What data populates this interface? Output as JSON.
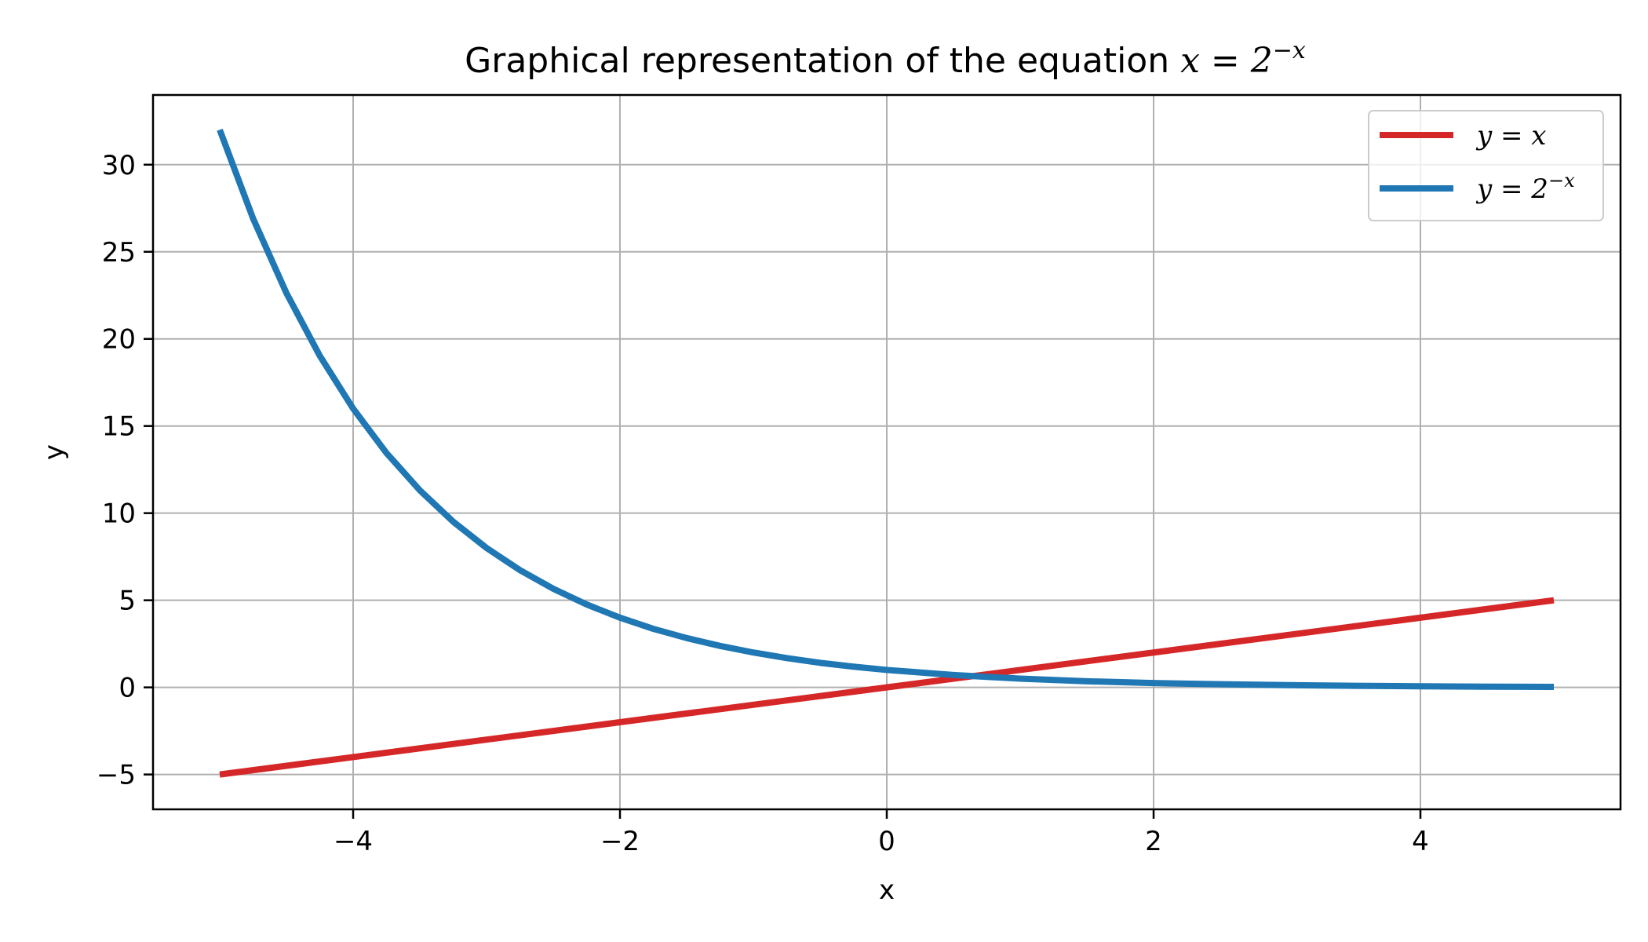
{
  "chart_data": {
    "type": "line",
    "title": {
      "prefix": "Graphical representation of the equation ",
      "math_base": "x = 2",
      "math_sup": "−x"
    },
    "xlabel": "x",
    "ylabel": "y",
    "xlim": [
      -5.5,
      5.5
    ],
    "ylim": [
      -7.0,
      34.0
    ],
    "xticks": [
      -4,
      -2,
      0,
      2,
      4
    ],
    "xtick_labels": [
      "−4",
      "−2",
      "0",
      "2",
      "4"
    ],
    "yticks": [
      -5,
      0,
      5,
      10,
      15,
      20,
      25,
      30
    ],
    "ytick_labels": [
      "−5",
      "0",
      "5",
      "10",
      "15",
      "20",
      "25",
      "30"
    ],
    "grid": true,
    "legend_position": "top-right",
    "series": [
      {
        "name": "y = x",
        "legend_base": "y = x",
        "legend_sup": "",
        "color": "#d62728",
        "x": [
          -5,
          -4,
          -3,
          -2,
          -1,
          0,
          1,
          2,
          3,
          4,
          5
        ],
        "y": [
          -5,
          -4,
          -3,
          -2,
          -1,
          0,
          1,
          2,
          3,
          4,
          5
        ]
      },
      {
        "name": "y = 2^(−x)",
        "legend_base": "y = 2",
        "legend_sup": "−x",
        "color": "#1f77b4",
        "x": [
          -5,
          -4.75,
          -4.5,
          -4.25,
          -4,
          -3.75,
          -3.5,
          -3.25,
          -3,
          -2.75,
          -2.5,
          -2.25,
          -2,
          -1.75,
          -1.5,
          -1.25,
          -1,
          -0.75,
          -0.5,
          -0.25,
          0,
          0.5,
          1,
          1.5,
          2,
          2.5,
          3,
          3.5,
          4,
          4.5,
          5
        ],
        "y": [
          32.0,
          26.91,
          22.63,
          19.03,
          16.0,
          13.45,
          11.31,
          9.51,
          8.0,
          6.73,
          5.66,
          4.76,
          4.0,
          3.36,
          2.83,
          2.38,
          2.0,
          1.68,
          1.41,
          1.19,
          1.0,
          0.71,
          0.5,
          0.35,
          0.25,
          0.18,
          0.13,
          0.09,
          0.06,
          0.04,
          0.03
        ]
      }
    ]
  }
}
